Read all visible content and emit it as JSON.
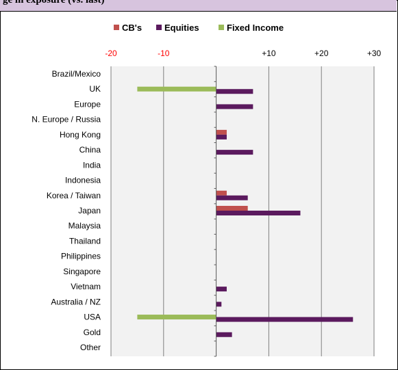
{
  "header": {
    "partial_title": "ge in exposure (vs. last)"
  },
  "chart_data": {
    "type": "bar",
    "orientation": "horizontal",
    "title": "",
    "xlim": [
      -20,
      30
    ],
    "ticks": [
      {
        "value": -20,
        "label": "-20",
        "color": "#ff0000"
      },
      {
        "value": -10,
        "label": "-10",
        "color": "#ff0000"
      },
      {
        "value": 10,
        "label": "+10",
        "color": "#000000"
      },
      {
        "value": 20,
        "label": "+20",
        "color": "#000000"
      },
      {
        "value": 30,
        "label": "+30",
        "color": "#000000"
      }
    ],
    "grid": true,
    "legend_position": "top-center",
    "categories": [
      "Brazil/Mexico",
      "UK",
      "Europe",
      "N. Europe / Russia",
      "Hong Kong",
      "China",
      "India",
      "Indonesia",
      "Korea / Taiwan",
      "Japan",
      "Malaysia",
      "Thailand",
      "Philippines",
      "Singapore",
      "Vietnam",
      "Australia / NZ",
      "USA",
      "Gold",
      "Other"
    ],
    "series": [
      {
        "name": "CB's",
        "color": "#c0504d",
        "values": [
          0,
          0,
          0,
          0,
          2,
          0,
          0,
          0,
          2,
          6,
          0,
          0,
          0,
          0,
          0,
          0,
          0,
          0,
          0
        ]
      },
      {
        "name": "Equities",
        "color": "#5b1a5e",
        "values": [
          0,
          7,
          7,
          0,
          2,
          7,
          0,
          0,
          6,
          16,
          0,
          0,
          0,
          0,
          2,
          1,
          26,
          3,
          0
        ]
      },
      {
        "name": "Fixed Income",
        "color": "#9bbb59",
        "values": [
          0,
          -15,
          0,
          0,
          0,
          0,
          0,
          0,
          0,
          0,
          0,
          0,
          0,
          0,
          0,
          0,
          -15,
          0,
          0
        ]
      }
    ]
  }
}
